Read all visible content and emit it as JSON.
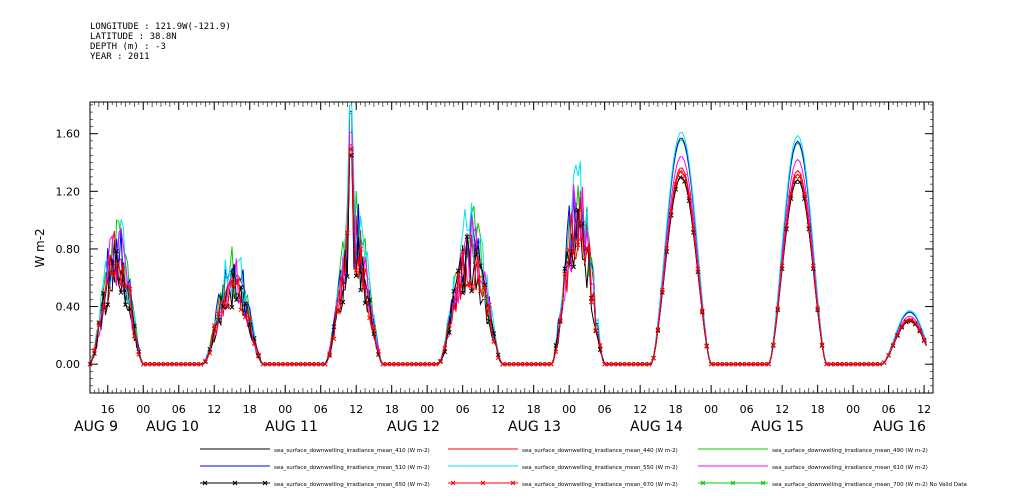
{
  "header": {
    "longitude": "LONGITUDE : 121.9W(-121.9)",
    "latitude": "LATITUDE : 38.8N",
    "depth": "DEPTH (m) : -3",
    "year": "YEAR : 2011"
  },
  "chart_data": {
    "type": "line",
    "ylabel": "W m-2",
    "ylim": [
      -0.2,
      1.82
    ],
    "yticks": [
      "0.00",
      "0.40",
      "0.80",
      "1.20",
      "1.60"
    ],
    "ytick_values": [
      0,
      0.4,
      0.8,
      1.2,
      1.6
    ],
    "x_unit": "hours since AUG 8 12:00",
    "xlim": [
      0,
      186
    ],
    "hour_ticks": [
      {
        "t": 4,
        "label": "16"
      },
      {
        "t": 12,
        "label": "00"
      },
      {
        "t": 20,
        "label": "06"
      },
      {
        "t": 28,
        "label": "12"
      },
      {
        "t": 36,
        "label": "18"
      },
      {
        "t": 44,
        "label": "00"
      },
      {
        "t": 52,
        "label": "06"
      },
      {
        "t": 60,
        "label": "12"
      },
      {
        "t": 68,
        "label": "18"
      },
      {
        "t": 76,
        "label": "00"
      },
      {
        "t": 84,
        "label": "06"
      },
      {
        "t": 92,
        "label": "12"
      },
      {
        "t": 100,
        "label": "18"
      },
      {
        "t": 108,
        "label": "00"
      },
      {
        "t": 116,
        "label": "06"
      },
      {
        "t": 124,
        "label": "12"
      },
      {
        "t": 132,
        "label": "18"
      },
      {
        "t": 140,
        "label": "00"
      },
      {
        "t": 148,
        "label": "06"
      },
      {
        "t": 156,
        "label": "12"
      },
      {
        "t": 164,
        "label": "18"
      },
      {
        "t": 172,
        "label": "00"
      },
      {
        "t": 180,
        "label": "06"
      },
      {
        "t": 188,
        "label": "12"
      }
    ],
    "day_labels": [
      {
        "t": 0,
        "label": "AUG 9"
      },
      {
        "t": 12,
        "label": "AUG 10"
      },
      {
        "t": 45,
        "label": "AUG 11"
      },
      {
        "t": 78,
        "label": "AUG 12"
      },
      {
        "t": 110,
        "label": "AUG 13"
      },
      {
        "t": 143,
        "label": "AUG 14"
      },
      {
        "t": 175,
        "label": "AUG 15"
      },
      {
        "t": 207,
        "label": "AUG 16"
      }
    ],
    "days": [
      {
        "start": 0,
        "end": 12,
        "peak": 0.75,
        "noisy": true
      },
      {
        "start": 25.5,
        "end": 39,
        "peak": 0.58,
        "noisy": true
      },
      {
        "start": 53,
        "end": 66,
        "peak": 0.85,
        "noisy": true,
        "spike": 1.45
      },
      {
        "start": 78.5,
        "end": 93,
        "peak": 0.78,
        "noisy": true
      },
      {
        "start": 104,
        "end": 116,
        "peak": 1.0,
        "noisy": true
      },
      {
        "start": 126.5,
        "end": 140,
        "peak": 1.3,
        "noisy": false
      },
      {
        "start": 153,
        "end": 166,
        "peak": 1.28,
        "noisy": false
      },
      {
        "start": 178.5,
        "end": 191,
        "peak": 0.3,
        "noisy": false
      }
    ],
    "series": [
      {
        "name": "sea_surface_downwelling_irradiance_mean_410 (W m-2)",
        "color": "#000000",
        "scale": 1.0,
        "marker": false
      },
      {
        "name": "sea_surface_downwelling_irradiance_mean_440 (W m-2)",
        "color": "#ff0000",
        "scale": 1.05,
        "marker": false
      },
      {
        "name": "sea_surface_downwelling_irradiance_mean_490 (W m-2)",
        "color": "#00cc00",
        "scale": 1.2,
        "marker": false
      },
      {
        "name": "sea_surface_downwelling_irradiance_mean_510 (W m-2)",
        "color": "#0000ff",
        "scale": 1.21,
        "marker": false
      },
      {
        "name": "sea_surface_downwelling_irradiance_mean_550 (W m-2)",
        "color": "#00e5ee",
        "scale": 1.24,
        "marker": false
      },
      {
        "name": "sea_surface_downwelling_irradiance_mean_610 (W m-2)",
        "color": "#ff00ff",
        "scale": 1.11,
        "marker": false
      },
      {
        "name": "sea_surface_downwelling_irradiance_mean_650 (W m-2)",
        "color": "#000000",
        "scale": 1.0,
        "marker": true
      },
      {
        "name": "sea_surface_downwelling_irradiance_mean_670 (W m-2)",
        "color": "#ff0000",
        "scale": 1.03,
        "marker": true
      },
      {
        "name": "sea_surface_downwelling_irradiance_mean_700 (W m-2) No Valid Data",
        "color": "#00cc00",
        "scale": 0,
        "marker": true
      }
    ]
  }
}
